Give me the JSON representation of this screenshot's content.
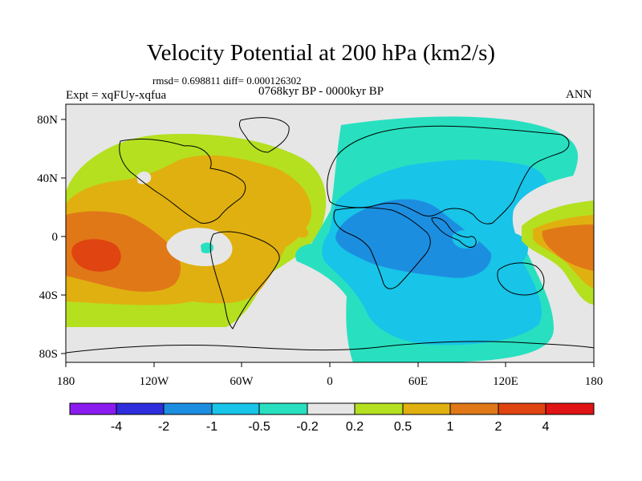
{
  "title": "Velocity Potential at 200 hPa (km2/s)",
  "stats": "rmsd= 0.698811 diff= 0.000126302",
  "experiment": "Expt = xqFUy-xqfua",
  "period": "0768kyr BP - 0000kyr BP",
  "season": "ANN",
  "map": {
    "lat_ticks": [
      "80N",
      "40N",
      "0",
      "40S",
      "80S"
    ],
    "lon_ticks": [
      "180",
      "120W",
      "60W",
      "0",
      "60E",
      "120E",
      "180"
    ],
    "colors": {
      "background": "#e6e6e6",
      "lt_m4": "#8a1cf0",
      "m4_m2": "#2e2edd",
      "m2_m1": "#1c8ee0",
      "m1_m05": "#18c4e8",
      "m05_m02": "#28e0c0",
      "m02_02": "#e6e6e6",
      "p02_p05": "#b4e020",
      "p05_p1": "#e0b010",
      "p1_p2": "#e07818",
      "p2_p4": "#e04410",
      "gt_p4": "#e01414"
    }
  },
  "colorbar": {
    "labels": [
      "-4",
      "-2",
      "-1",
      "-0.5",
      "-0.2",
      "0.2",
      "0.5",
      "1",
      "2",
      "4"
    ],
    "colors": [
      "#8a1cf0",
      "#2e2edd",
      "#1c8ee0",
      "#18c4e8",
      "#28e0c0",
      "#e6e6e6",
      "#b4e020",
      "#e0b010",
      "#e07818",
      "#e04410",
      "#e01414"
    ]
  }
}
